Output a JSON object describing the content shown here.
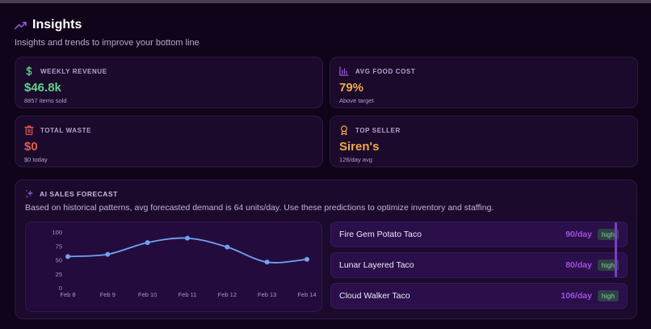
{
  "header": {
    "title": "Insights",
    "subtitle": "Insights and trends to improve your bottom line",
    "icon": "trending-up-icon"
  },
  "stats": [
    {
      "label": "WEEKLY REVENUE",
      "value": "$46.8k",
      "sub": "8857 items sold",
      "icon": "dollar-icon",
      "color": "#5fd38a"
    },
    {
      "label": "AVG FOOD COST",
      "value": "79%",
      "sub": "Above target",
      "icon": "bar-chart-icon",
      "color": "#f2a94a"
    },
    {
      "label": "TOTAL WASTE",
      "value": "$0",
      "sub": "$0 today",
      "icon": "trash-icon",
      "color": "#e55a4c"
    },
    {
      "label": "TOP SELLER",
      "value": "Siren's",
      "sub": "126/day avg",
      "icon": "award-icon",
      "color": "#f2a94a"
    }
  ],
  "forecast": {
    "label": "AI SALES FORECAST",
    "icon": "sparkles-icon",
    "description": "Based on historical patterns, avg forecasted demand is 64 units/day. Use these predictions to optimize inventory and staffing.",
    "items": [
      {
        "name": "Fire Gem Potato Taco",
        "rate": "90/day",
        "badge": "high"
      },
      {
        "name": "Lunar Layered Taco",
        "rate": "80/day",
        "badge": "high"
      },
      {
        "name": "Cloud Walker Taco",
        "rate": "106/day",
        "badge": "high"
      }
    ]
  },
  "chart_data": {
    "type": "line",
    "title": "",
    "categories": [
      "Feb 8",
      "Feb 9",
      "Feb 10",
      "Feb 11",
      "Feb 12",
      "Feb 13",
      "Feb 14"
    ],
    "values": [
      56,
      60,
      81,
      89,
      73,
      46,
      51
    ],
    "yticks": [
      "100",
      "75",
      "50",
      "25",
      "0"
    ],
    "ylim": [
      0,
      100
    ],
    "xlabel": "",
    "ylabel": "",
    "grid": false,
    "color": "#6fa3f0"
  }
}
